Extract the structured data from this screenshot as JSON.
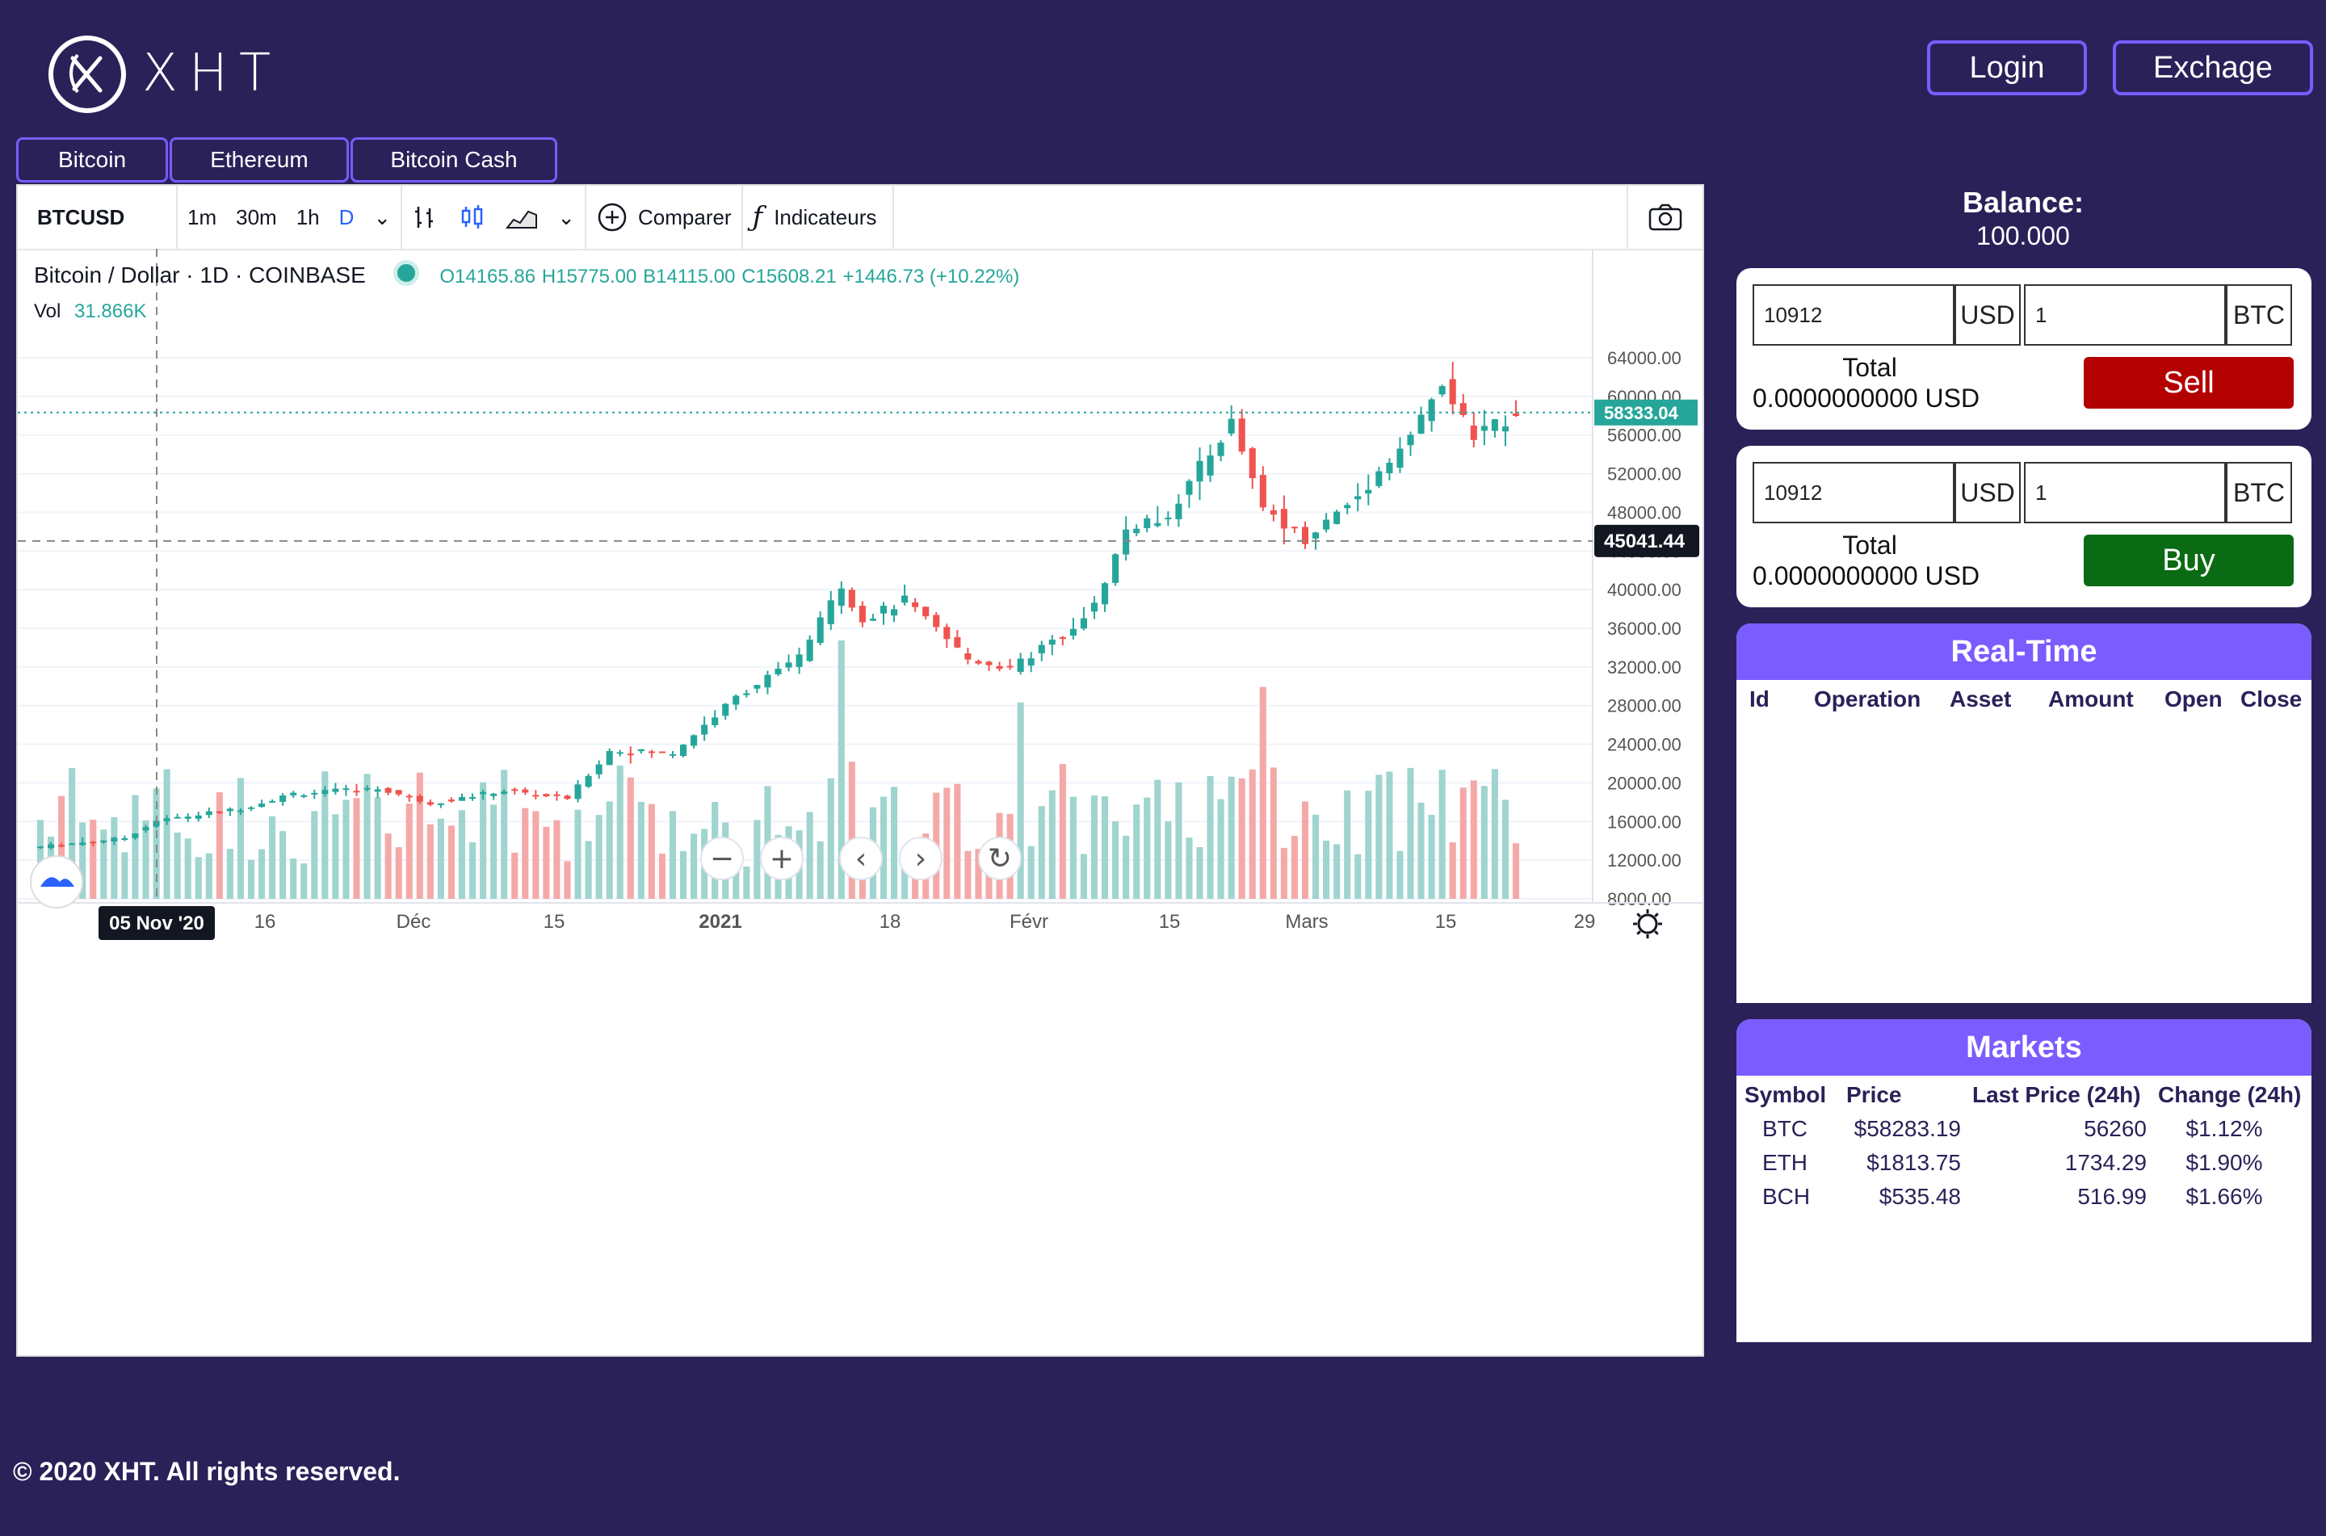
{
  "header": {
    "logo_text": "XHT",
    "login_label": "Login",
    "exchange_label": "Exchage"
  },
  "tabs": [
    "Bitcoin",
    "Ethereum",
    "Bitcoin Cash"
  ],
  "chart": {
    "symbol": "BTCUSD",
    "intervals": [
      "1m",
      "30m",
      "1h",
      "D"
    ],
    "active_interval": "D",
    "compare_label": "Comparer",
    "indicators_label": "Indicateurs",
    "title": "Bitcoin / Dollar · 1D · COINBASE",
    "ohlc": {
      "open": "O14165.86",
      "high": "H15775.00",
      "low": "B14115.00",
      "close": "C15608.21",
      "change": "+1446.73 (+10.22%)"
    },
    "vol_label": "Vol",
    "vol_value": "31.866K",
    "last_price_tag": "58333.04",
    "crosshair_price_tag": "45041.44",
    "crosshair_date_tag": "05 Nov '20",
    "colors": {
      "up": "#26a69a",
      "down": "#ef5350",
      "up_vol": "#9fd4cf",
      "down_vol": "#f4a9a8"
    }
  },
  "chart_data": {
    "type": "candlestick",
    "y_ticks": [
      "64000.00",
      "60000.00",
      "56000.00",
      "52000.00",
      "48000.00",
      "44000.00",
      "40000.00",
      "36000.00",
      "32000.00",
      "28000.00",
      "24000.00",
      "20000.00",
      "16000.00",
      "12000.00",
      "8000.00"
    ],
    "ylim": [
      8000,
      66000
    ],
    "x_ticks": [
      "16",
      "Déc",
      "15",
      "2021",
      "18",
      "Févr",
      "15",
      "Mars",
      "15",
      "29"
    ],
    "anchors": [
      {
        "d": 0,
        "p": 13400
      },
      {
        "d": 8,
        "p": 14300
      },
      {
        "d": 11,
        "p": 16100
      },
      {
        "d": 19,
        "p": 17300
      },
      {
        "d": 24,
        "p": 18900
      },
      {
        "d": 32,
        "p": 19400
      },
      {
        "d": 37,
        "p": 17900
      },
      {
        "d": 44,
        "p": 19200
      },
      {
        "d": 50,
        "p": 18400
      },
      {
        "d": 54,
        "p": 23300
      },
      {
        "d": 60,
        "p": 23100
      },
      {
        "d": 66,
        "p": 28900
      },
      {
        "d": 72,
        "p": 33000
      },
      {
        "d": 76,
        "p": 40500
      },
      {
        "d": 78,
        "p": 36800
      },
      {
        "d": 82,
        "p": 38900
      },
      {
        "d": 88,
        "p": 32800
      },
      {
        "d": 92,
        "p": 31800
      },
      {
        "d": 96,
        "p": 34600
      },
      {
        "d": 100,
        "p": 38300
      },
      {
        "d": 103,
        "p": 46200
      },
      {
        "d": 107,
        "p": 47800
      },
      {
        "d": 113,
        "p": 57300
      },
      {
        "d": 116,
        "p": 48600
      },
      {
        "d": 120,
        "p": 45300
      },
      {
        "d": 125,
        "p": 49700
      },
      {
        "d": 130,
        "p": 56000
      },
      {
        "d": 133,
        "p": 61200
      },
      {
        "d": 136,
        "p": 55800
      },
      {
        "d": 140,
        "p": 58300
      }
    ],
    "volume_spikes": [
      {
        "d": 76,
        "v": 100
      },
      {
        "d": 93,
        "v": 76
      },
      {
        "d": 116,
        "v": 82
      }
    ]
  },
  "balance": {
    "label": "Balance:",
    "value": "100.000"
  },
  "sell": {
    "amount": "10912",
    "amount_currency": "USD",
    "qty": "1",
    "qty_currency": "BTC",
    "total_label": "Total",
    "total_value": "0.0000000000 USD",
    "button": "Sell",
    "color": "#b30000"
  },
  "buy": {
    "amount": "10912",
    "amount_currency": "USD",
    "qty": "1",
    "qty_currency": "BTC",
    "total_label": "Total",
    "total_value": "0.0000000000 USD",
    "button": "Buy",
    "color": "#0b6b14"
  },
  "realtime": {
    "title": "Real-Time",
    "columns": [
      "Id",
      "Operation",
      "Asset",
      "Amount",
      "Open",
      "Close"
    ]
  },
  "markets": {
    "title": "Markets",
    "columns": [
      "Symbol",
      "Price",
      "Last Price (24h)",
      "Change (24h)"
    ],
    "rows": [
      {
        "symbol": "BTC",
        "price": "$58283.19",
        "last": "56260",
        "change": "$1.12%"
      },
      {
        "symbol": "ETH",
        "price": "$1813.75",
        "last": "1734.29",
        "change": "$1.90%"
      },
      {
        "symbol": "BCH",
        "price": "$535.48",
        "last": "516.99",
        "change": "$1.66%"
      }
    ]
  },
  "footer": {
    "text": "© 2020 XHT. All rights reserved."
  }
}
